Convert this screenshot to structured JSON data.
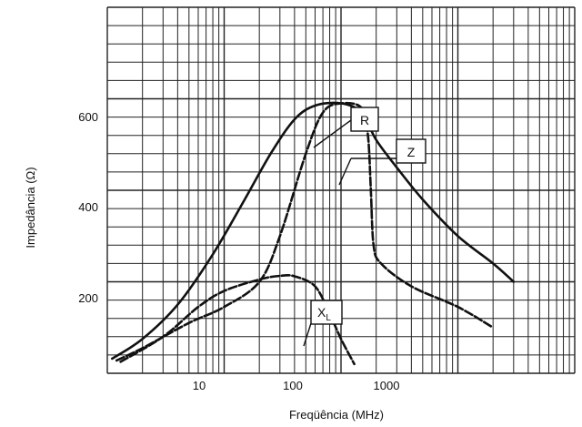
{
  "chart_data": {
    "type": "line",
    "title": "",
    "xlabel": "Freqüência (MHz)",
    "ylabel": "Impedância (Ω)",
    "x_scale": "log",
    "xlim": [
      1,
      10000
    ],
    "ylim": [
      0,
      800
    ],
    "x_ticks": [
      {
        "value": 10,
        "label": "10"
      },
      {
        "value": 100,
        "label": "100"
      },
      {
        "value": 1000,
        "label": "1000"
      }
    ],
    "y_ticks": [
      {
        "value": 200,
        "label": "200"
      },
      {
        "value": 400,
        "label": "400"
      },
      {
        "value": 600,
        "label": "600"
      }
    ],
    "grid": true,
    "series": [
      {
        "name": "Z",
        "style": "solid",
        "label_value": {
          "x": 200,
          "y": 470
        },
        "points": [
          [
            1.1,
            32
          ],
          [
            2,
            75
          ],
          [
            4,
            150
          ],
          [
            8,
            260
          ],
          [
            15,
            380
          ],
          [
            25,
            480
          ],
          [
            40,
            555
          ],
          [
            60,
            585
          ],
          [
            100,
            590
          ],
          [
            150,
            570
          ],
          [
            200,
            510
          ],
          [
            300,
            450
          ],
          [
            500,
            380
          ],
          [
            1000,
            300
          ],
          [
            2000,
            240
          ],
          [
            3000,
            200
          ]
        ]
      },
      {
        "name": "R",
        "style": "dashed",
        "label_value": {
          "x": 160,
          "y": 565
        },
        "points": [
          [
            1.2,
            28
          ],
          [
            2,
            55
          ],
          [
            5,
            110
          ],
          [
            10,
            145
          ],
          [
            20,
            200
          ],
          [
            30,
            300
          ],
          [
            50,
            480
          ],
          [
            70,
            570
          ],
          [
            100,
            590
          ],
          [
            150,
            580
          ],
          [
            170,
            520
          ],
          [
            180,
            400
          ],
          [
            190,
            280
          ],
          [
            220,
            240
          ],
          [
            400,
            190
          ],
          [
            1000,
            145
          ],
          [
            2000,
            100
          ]
        ]
      },
      {
        "name": "XL",
        "style": "dashed",
        "label_value": {
          "x": 100,
          "y": 90
        },
        "points": [
          [
            1.3,
            25
          ],
          [
            3,
            80
          ],
          [
            6,
            145
          ],
          [
            10,
            180
          ],
          [
            20,
            205
          ],
          [
            30,
            213
          ],
          [
            40,
            212
          ],
          [
            60,
            190
          ],
          [
            80,
            130
          ],
          [
            100,
            75
          ],
          [
            130,
            20
          ]
        ]
      }
    ],
    "annotations": [
      {
        "text": "R",
        "sub": ""
      },
      {
        "text": "Z",
        "sub": ""
      },
      {
        "text": "X",
        "sub": "L"
      }
    ]
  }
}
